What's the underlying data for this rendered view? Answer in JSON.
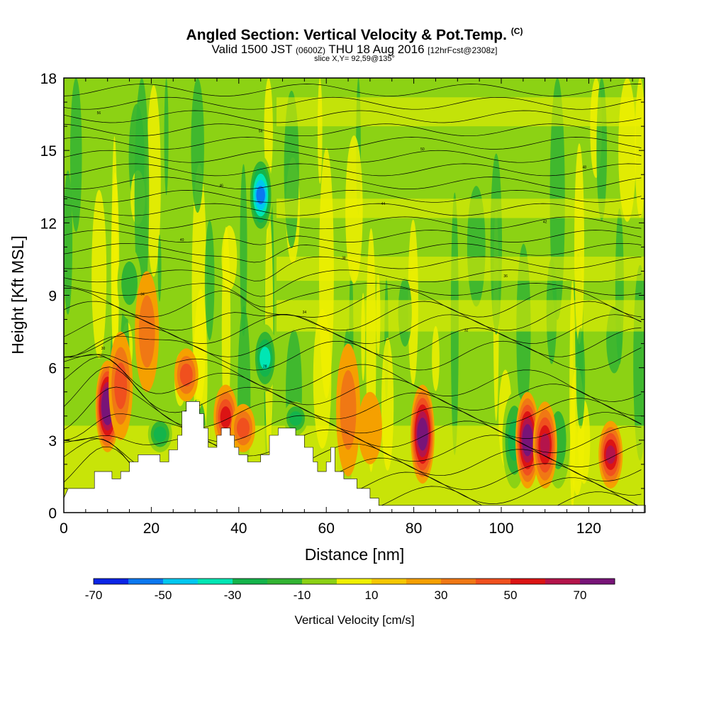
{
  "title": "Angled Section: Vertical Velocity & Pot.Temp.",
  "title_unit": "(C)",
  "subtitle_a": "Valid 1500 JST",
  "subtitle_z": "(0600Z)",
  "subtitle_b": "THU 18 Aug 2016",
  "subtitle_fcst": "[12hrFcst@2308z]",
  "slice": "slice X,Y= 92,59@135°",
  "chart_data": {
    "type": "heatmap",
    "xlabel": "Distance [nm]",
    "ylabel": "Height [Kft MSL]",
    "xlim": [
      0,
      133
    ],
    "ylim": [
      0,
      18
    ],
    "xticks": [
      0,
      20,
      40,
      60,
      80,
      100,
      120
    ],
    "yticks": [
      0,
      3,
      6,
      9,
      12,
      15,
      18
    ],
    "colorbar_label": "Vertical Velocity [cm/s]",
    "colorbar_ticks": [
      -70,
      -50,
      -30,
      -10,
      10,
      30,
      50,
      70
    ],
    "colorbar_colors": [
      "#0a24e6",
      "#0a78f0",
      "#00c8f0",
      "#00e6b4",
      "#14b44b",
      "#32b432",
      "#8cd214",
      "#f0f000",
      "#f5c800",
      "#f5a000",
      "#f07814",
      "#f0501e",
      "#dc1414",
      "#b4144b",
      "#781478"
    ],
    "terrain": [
      [
        0,
        0.6
      ],
      [
        1,
        1.0
      ],
      [
        7,
        1.0
      ],
      [
        7,
        1.7
      ],
      [
        11,
        1.7
      ],
      [
        11,
        1.4
      ],
      [
        13,
        1.4
      ],
      [
        13,
        1.7
      ],
      [
        15,
        1.7
      ],
      [
        15,
        2.1
      ],
      [
        17,
        2.1
      ],
      [
        17,
        2.4
      ],
      [
        22,
        2.4
      ],
      [
        22,
        2.1
      ],
      [
        24,
        2.1
      ],
      [
        24,
        2.6
      ],
      [
        26,
        2.6
      ],
      [
        26,
        3.2
      ],
      [
        27,
        3.2
      ],
      [
        27,
        4.2
      ],
      [
        28,
        4.2
      ],
      [
        28,
        4.6
      ],
      [
        31,
        4.6
      ],
      [
        31,
        4.1
      ],
      [
        32,
        4.1
      ],
      [
        32,
        3.5
      ],
      [
        33,
        3.5
      ],
      [
        33,
        2.7
      ],
      [
        35,
        2.7
      ],
      [
        35,
        3.2
      ],
      [
        36,
        3.2
      ],
      [
        36,
        3.5
      ],
      [
        38,
        3.5
      ],
      [
        38,
        3.2
      ],
      [
        39,
        3.2
      ],
      [
        39,
        2.7
      ],
      [
        40,
        2.7
      ],
      [
        40,
        2.4
      ],
      [
        42,
        2.4
      ],
      [
        42,
        2.1
      ],
      [
        45,
        2.1
      ],
      [
        45,
        2.4
      ],
      [
        47,
        2.4
      ],
      [
        47,
        3.2
      ],
      [
        49,
        3.2
      ],
      [
        49,
        3.5
      ],
      [
        53,
        3.5
      ],
      [
        53,
        3.2
      ],
      [
        55,
        3.2
      ],
      [
        55,
        2.7
      ],
      [
        57,
        2.7
      ],
      [
        57,
        2.1
      ],
      [
        58,
        2.1
      ],
      [
        58,
        1.7
      ],
      [
        60,
        1.7
      ],
      [
        60,
        2.1
      ],
      [
        61,
        2.1
      ],
      [
        61,
        2.7
      ],
      [
        62,
        2.7
      ],
      [
        62,
        1.7
      ],
      [
        64,
        1.7
      ],
      [
        64,
        1.4
      ],
      [
        67,
        1.4
      ],
      [
        67,
        1.0
      ],
      [
        70,
        1.0
      ],
      [
        70,
        0.6
      ],
      [
        72,
        0.6
      ],
      [
        72,
        0.3
      ],
      [
        133,
        0.3
      ]
    ],
    "updraft_cores": [
      {
        "x": 10,
        "ymin": 2.5,
        "ymax": 6.3,
        "peak": 80
      },
      {
        "x": 13,
        "ymin": 3.0,
        "ymax": 7.5,
        "peak": 30
      },
      {
        "x": 19,
        "ymin": 5.0,
        "ymax": 10.0,
        "peak": 20
      },
      {
        "x": 28,
        "ymin": 4.6,
        "ymax": 6.8,
        "peak": 30
      },
      {
        "x": 37,
        "ymin": 2.6,
        "ymax": 5.3,
        "peak": 40
      },
      {
        "x": 41,
        "ymin": 2.5,
        "ymax": 4.5,
        "peak": 30
      },
      {
        "x": 65,
        "ymin": 1.5,
        "ymax": 7.0,
        "peak": 20
      },
      {
        "x": 70,
        "ymin": 2.0,
        "ymax": 5.0,
        "peak": 10
      },
      {
        "x": 82,
        "ymin": 1.2,
        "ymax": 5.3,
        "peak": 70
      },
      {
        "x": 106,
        "ymin": 1.0,
        "ymax": 5.0,
        "peak": 70
      },
      {
        "x": 110,
        "ymin": 1.0,
        "ymax": 4.6,
        "peak": 50
      },
      {
        "x": 125,
        "ymin": 1.0,
        "ymax": 3.8,
        "peak": 50
      }
    ],
    "downdraft_cores": [
      {
        "x": 45,
        "ymin": 11.5,
        "ymax": 14.8,
        "peak": -55
      },
      {
        "x": 46,
        "ymin": 5.0,
        "ymax": 7.8,
        "peak": -35
      },
      {
        "x": 53,
        "ymin": 3.2,
        "ymax": 4.6,
        "peak": -30
      },
      {
        "x": 22,
        "ymin": 2.5,
        "ymax": 4.0,
        "peak": -30
      },
      {
        "x": 15,
        "ymin": 8.0,
        "ymax": 11.0,
        "peak": -20
      },
      {
        "x": 103,
        "ymin": 1.0,
        "ymax": 5.0,
        "peak": -30
      },
      {
        "x": 113,
        "ymin": 1.0,
        "ymax": 5.0,
        "peak": -20
      }
    ],
    "theta_labels": [
      "56",
      "56",
      "50",
      "48",
      "46",
      "44",
      "42",
      "40",
      "38",
      "36",
      "34",
      "34",
      "32",
      "30",
      "28"
    ]
  }
}
